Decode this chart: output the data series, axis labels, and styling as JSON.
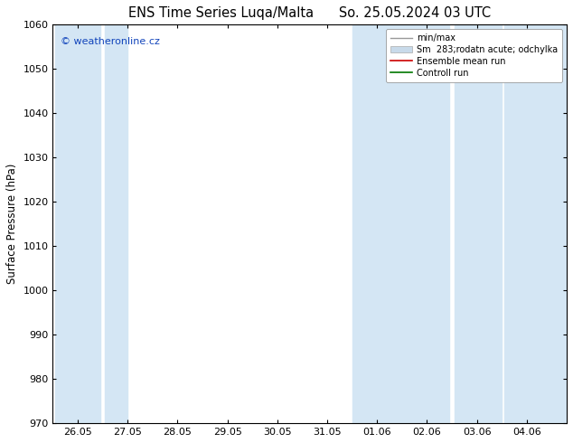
{
  "title_left": "ENS Time Series Luqa/Malta",
  "title_right": "So. 25.05.2024 03 UTC",
  "ylabel": "Surface Pressure (hPa)",
  "ylim": [
    970,
    1060
  ],
  "yticks": [
    970,
    980,
    990,
    1000,
    1010,
    1020,
    1030,
    1040,
    1050,
    1060
  ],
  "xlabels": [
    "26.05",
    "27.05",
    "28.05",
    "29.05",
    "30.05",
    "31.05",
    "01.06",
    "02.06",
    "03.06",
    "04.06"
  ],
  "watermark": "© weatheronline.cz",
  "legend_entries": [
    "min/max",
    "Sm  283;rodatn acute; odchylka",
    "Ensemble mean run",
    "Controll run"
  ],
  "legend_colors": [
    "#aaaaaa",
    "#c8d8e8",
    "#cc0000",
    "#007700"
  ],
  "bg_color": "#ffffff",
  "plot_bg_color": "#ffffff",
  "band_color": "#d4e6f4",
  "band_alpha": 1.0,
  "title_fontsize": 10.5,
  "axis_fontsize": 8.5,
  "tick_fontsize": 8,
  "watermark_color": "#1144bb",
  "figsize": [
    6.34,
    4.9
  ],
  "dpi": 100,
  "xmin": 25.0,
  "xmax": 36.0
}
